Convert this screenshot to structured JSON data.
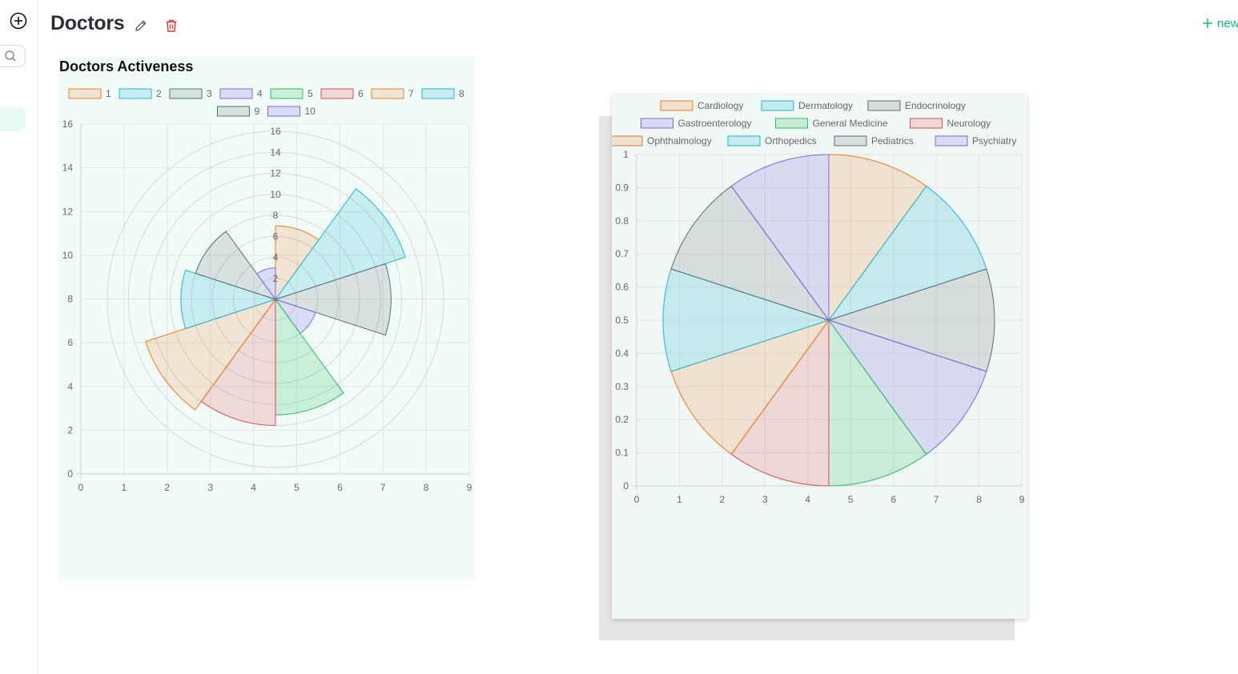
{
  "page": {
    "title": "Doctors",
    "new_label": "new"
  },
  "chart_data": [
    {
      "type": "polarArea",
      "title": "Doctors Activeness",
      "legend": [
        "1",
        "2",
        "3",
        "4",
        "5",
        "6",
        "7",
        "8",
        "9",
        "10"
      ],
      "values": [
        7,
        13,
        11,
        4,
        11,
        12,
        13,
        9,
        8,
        3
      ],
      "r_ticks": [
        2,
        4,
        6,
        8,
        10,
        12,
        14,
        16
      ],
      "r_max": 16,
      "x_ticks": [
        0,
        1,
        2,
        3,
        4,
        5,
        6,
        7,
        8,
        9
      ],
      "y_ticks": [
        0,
        2,
        4,
        6,
        8,
        10,
        12,
        14,
        16
      ],
      "xlim": [
        0,
        9
      ],
      "ylim": [
        0,
        16
      ],
      "grid": true,
      "legend_position": "top"
    },
    {
      "type": "pie",
      "title": "",
      "legend": [
        "Cardiology",
        "Dermatology",
        "Endocrinology",
        "Gastroenterology",
        "General Medicine",
        "Neurology",
        "Ophthalmology",
        "Orthopedics",
        "Pediatrics",
        "Psychiatry"
      ],
      "values": [
        1,
        1,
        1,
        1,
        1,
        1,
        1,
        1,
        1,
        1
      ],
      "x_ticks": [
        0,
        1,
        2,
        3,
        4,
        5,
        6,
        7,
        8,
        9
      ],
      "y_ticks": [
        0,
        0.1,
        0.2,
        0.3,
        0.4,
        0.5,
        0.6,
        0.7,
        0.8,
        0.9,
        1
      ],
      "xlim": [
        0,
        9
      ],
      "ylim": [
        0,
        1
      ],
      "grid": true,
      "legend_position": "top"
    }
  ],
  "palette": {
    "stroke": [
      "#ed7a26",
      "#1fb6cf",
      "#5f6b73",
      "#7f66e0",
      "#2bbd5f",
      "#e3474f"
    ],
    "fill": [
      "rgba(237,122,38,0.18)",
      "rgba(31,182,207,0.2)",
      "rgba(95,107,115,0.18)",
      "rgba(127,102,224,0.2)",
      "rgba(43,189,95,0.2)",
      "rgba(227,71,79,0.18)"
    ]
  }
}
